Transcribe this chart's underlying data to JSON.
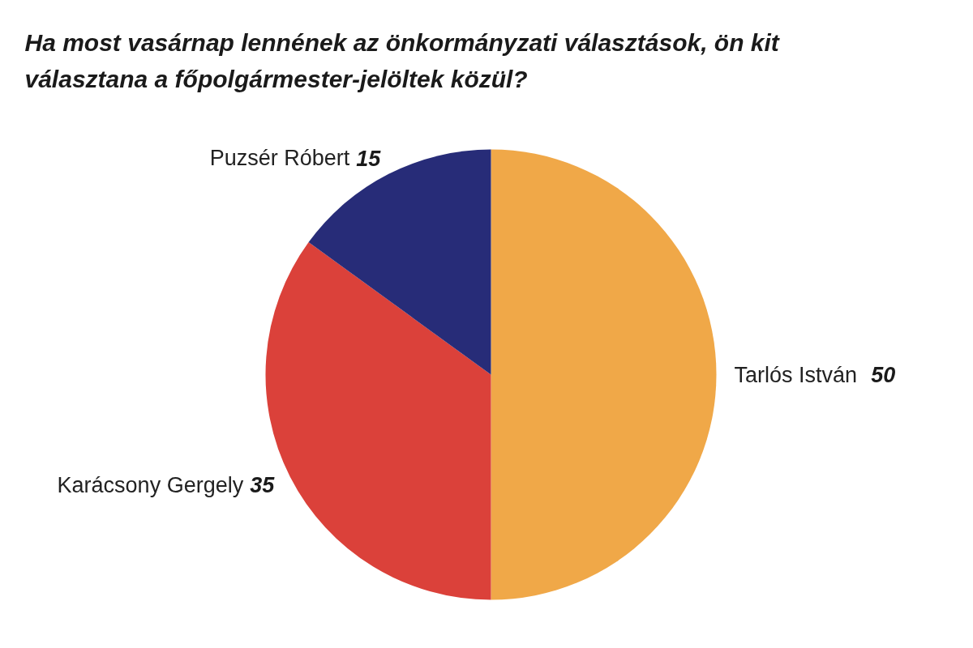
{
  "chart_data": {
    "type": "pie",
    "title": "Ha most vasárnap lennének az önkormányzati választások, ön kit választana a főpolgármester-jelöltek közül?",
    "categories": [
      "Tarlós István",
      "Karácsony Gergely",
      "Puzsér Róbert"
    ],
    "values": [
      50,
      35,
      15
    ],
    "colors": [
      "#f0a848",
      "#db413a",
      "#272c78"
    ],
    "data_labels": true
  }
}
